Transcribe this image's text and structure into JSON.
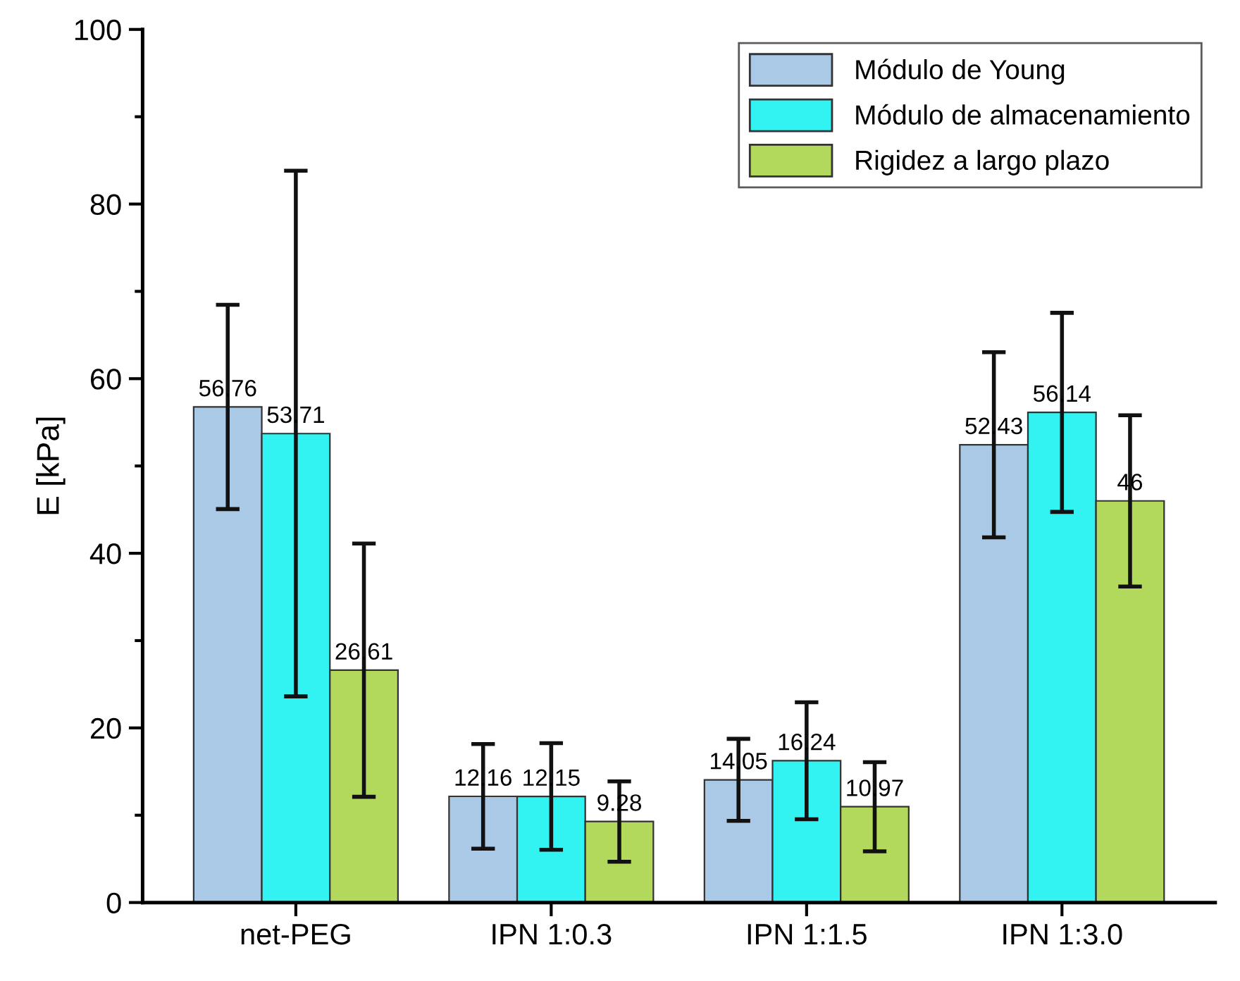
{
  "chart_data": {
    "type": "bar",
    "ylabel": "E [kPa]",
    "categories": [
      "net-PEG",
      "IPN 1:0.3",
      "IPN 1:1.5",
      "IPN 1:3.0"
    ],
    "series": [
      {
        "name": "Módulo de Young",
        "color": "#a9c9e6",
        "values": [
          56.76,
          12.16,
          14.05,
          52.43
        ],
        "value_labels": [
          "56.76",
          "12.16",
          "14.05",
          "52.43"
        ],
        "errors": [
          11.7,
          6.0,
          4.7,
          10.6
        ]
      },
      {
        "name": "Módulo de almacenamiento",
        "color": "#33f2f2",
        "values": [
          53.71,
          12.15,
          16.24,
          56.14
        ],
        "value_labels": [
          "53.71",
          "12.15",
          "16.24",
          "56.14"
        ],
        "errors": [
          30.1,
          6.1,
          6.7,
          11.4
        ]
      },
      {
        "name": "Rigidez a largo plazo",
        "color": "#b3d95c",
        "values": [
          26.61,
          9.28,
          10.97,
          46
        ],
        "value_labels": [
          "26.61",
          "9.28",
          "10.97",
          "46"
        ],
        "errors": [
          14.5,
          4.6,
          5.1,
          9.8
        ]
      }
    ],
    "ylim": [
      0,
      100
    ],
    "yticks": [
      0,
      {
        "value": 10,
        "label": null
      },
      20,
      {
        "value": 30,
        "label": null
      },
      40,
      {
        "value": 50,
        "label": null
      },
      60,
      {
        "value": 70,
        "label": null
      },
      80,
      {
        "value": 90,
        "label": null
      },
      100
    ],
    "grid": false,
    "legend": "top right"
  }
}
